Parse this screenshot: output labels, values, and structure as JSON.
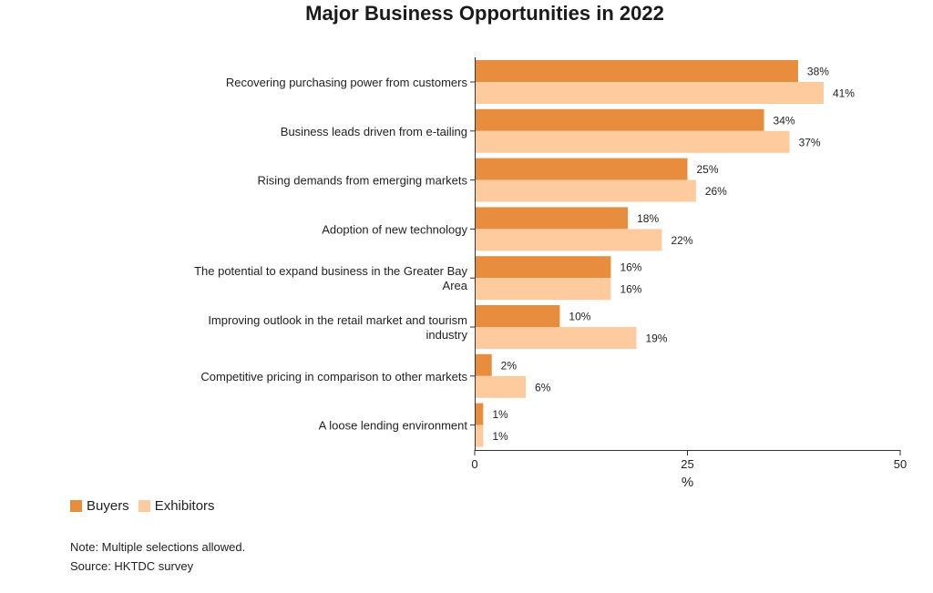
{
  "chart_data": {
    "type": "bar",
    "orientation": "horizontal",
    "title": "Major Business Opportunities in 2022",
    "categories": [
      "Recovering purchasing power from customers",
      "Business leads driven from e-tailing",
      "Rising demands from emerging markets",
      "Adoption of new technology",
      "The potential to expand business in the Greater Bay Area",
      "Improving outlook in the retail market and tourism industry",
      "Competitive pricing in comparison to other markets",
      "A loose lending environment"
    ],
    "series": [
      {
        "name": "Buyers",
        "color": "#e88c3e",
        "values": [
          38,
          34,
          25,
          18,
          16,
          10,
          2,
          1
        ]
      },
      {
        "name": "Exhibitors",
        "color": "#fdcb9e",
        "values": [
          41,
          37,
          26,
          22,
          16,
          19,
          6,
          1
        ]
      }
    ],
    "value_suffix": "%",
    "xlabel": "%",
    "ylabel": "",
    "xlim": [
      0,
      50
    ],
    "xticks": [
      0,
      25,
      50
    ],
    "grid": false,
    "legend_position": "bottom-left"
  },
  "notes": {
    "note": "Note: Multiple selections allowed.",
    "source": "Source: HKTDC survey"
  }
}
